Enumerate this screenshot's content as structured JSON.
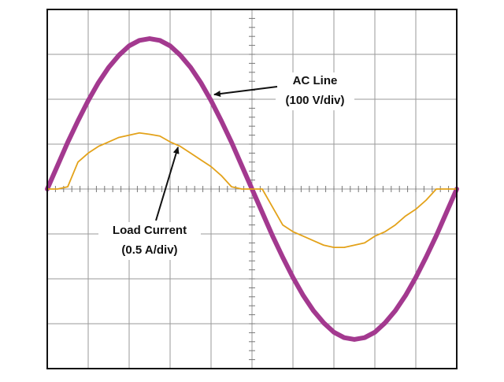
{
  "chart_data": {
    "type": "line",
    "annotations": [
      "AC Line",
      "(100 V/div)",
      "Load Current",
      "(0.5 A/div)"
    ],
    "x": [
      0,
      0.25,
      0.5,
      0.75,
      1,
      1.25,
      1.5,
      1.75,
      2,
      2.25,
      2.5,
      2.75,
      3,
      3.25,
      3.5,
      3.75,
      4,
      4.25,
      4.5,
      4.75,
      5,
      5.25,
      5.5,
      5.75,
      6,
      6.25,
      6.5,
      6.75,
      7,
      7.25,
      7.5,
      7.75,
      8,
      8.25,
      8.5,
      8.75,
      9,
      9.25,
      9.5,
      9.75,
      10
    ],
    "series": [
      {
        "color": "#a3398f",
        "values": [
          0,
          0.52,
          1.04,
          1.52,
          1.97,
          2.37,
          2.71,
          2.98,
          3.19,
          3.31,
          3.35,
          3.31,
          3.19,
          2.98,
          2.71,
          2.37,
          1.97,
          1.52,
          1.04,
          0.52,
          0,
          -0.52,
          -1.04,
          -1.52,
          -1.97,
          -2.37,
          -2.71,
          -2.98,
          -3.19,
          -3.31,
          -3.35,
          -3.31,
          -3.19,
          -2.98,
          -2.71,
          -2.37,
          -1.97,
          -1.52,
          -1.04,
          -0.52,
          0
        ]
      },
      {
        "color": "#e3a21a",
        "values": [
          0,
          0,
          0.05,
          0.6,
          0.8,
          0.95,
          1.05,
          1.15,
          1.2,
          1.25,
          1.22,
          1.18,
          1.05,
          0.95,
          0.8,
          0.65,
          0.5,
          0.3,
          0.05,
          0,
          0,
          0,
          -0.4,
          -0.8,
          -0.95,
          -1.05,
          -1.15,
          -1.25,
          -1.3,
          -1.3,
          -1.25,
          -1.2,
          -1.05,
          -0.95,
          -0.8,
          -0.6,
          -0.45,
          -0.25,
          0,
          0,
          0
        ]
      }
    ],
    "xlim": [
      0,
      10
    ],
    "ylim": [
      -4,
      4
    ],
    "xticks": [
      0,
      1,
      2,
      3,
      4,
      5,
      6,
      7,
      8,
      9,
      10
    ],
    "yticks": [
      -4,
      -3,
      -2,
      -1,
      0,
      1,
      2,
      3,
      4
    ],
    "grid": true
  }
}
